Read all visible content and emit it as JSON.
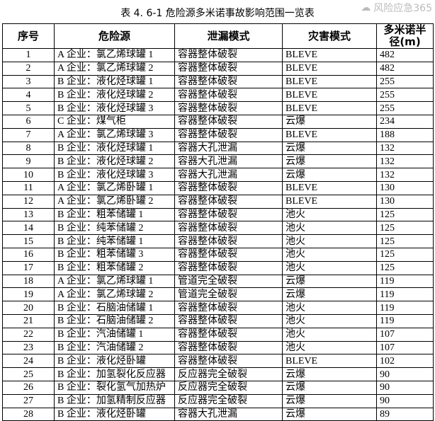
{
  "title": "表 4. 6-1  危险源多米诺事故影响范围一览表",
  "headers": [
    "序号",
    "危险源",
    "泄漏模式",
    "灾害模式",
    "多米诺半径(m)"
  ],
  "rows": [
    [
      "1",
      "A 企业：氯乙烯球罐 1",
      "容器整体破裂",
      "BLEVE",
      "482"
    ],
    [
      "2",
      "A 企业：氯乙烯球罐 2",
      "容器整体破裂",
      "BLEVE",
      "482"
    ],
    [
      "3",
      "B 企业：液化烃球罐 1",
      "容器整体破裂",
      "BLEVE",
      "255"
    ],
    [
      "4",
      "B 企业：液化烃球罐 2",
      "容器整体破裂",
      "BLEVE",
      "255"
    ],
    [
      "5",
      "B 企业：液化烃球罐 3",
      "容器整体破裂",
      "BLEVE",
      "255"
    ],
    [
      "6",
      "C 企业：煤气柜",
      "容器整体破裂",
      "云爆",
      "234"
    ],
    [
      "7",
      "A 企业：氯乙烯球罐 3",
      "容器整体破裂",
      "BLEVE",
      "188"
    ],
    [
      "8",
      "B 企业：液化烃球罐 1",
      "容器大孔泄漏",
      "云爆",
      "132"
    ],
    [
      "9",
      "B 企业：液化烃球罐 2",
      "容器大孔泄漏",
      "云爆",
      "132"
    ],
    [
      "10",
      "B 企业：液化烃球罐 3",
      "容器大孔泄漏",
      "云爆",
      "132"
    ],
    [
      "11",
      "A 企业：氯乙烯卧罐 1",
      "容器整体破裂",
      "BLEVE",
      "130"
    ],
    [
      "12",
      "A 企业：氯乙烯卧罐 2",
      "容器整体破裂",
      "BLEVE",
      "130"
    ],
    [
      "13",
      "B 企业：粗苯储罐 1",
      "容器整体破裂",
      "池火",
      "125"
    ],
    [
      "14",
      "B 企业：纯苯储罐 2",
      "容器整体破裂",
      "池火",
      "125"
    ],
    [
      "15",
      "B 企业：纯苯储罐 1",
      "容器整体破裂",
      "池火",
      "125"
    ],
    [
      "16",
      "B 企业：粗苯储罐 3",
      "容器整体破裂",
      "池火",
      "125"
    ],
    [
      "17",
      "B 企业：粗苯储罐 2",
      "容器整体破裂",
      "池火",
      "125"
    ],
    [
      "18",
      "A 企业：氯乙烯球罐 1",
      "管道完全破裂",
      "云爆",
      "119"
    ],
    [
      "19",
      "A 企业：氯乙烯球罐 2",
      "管道完全破裂",
      "云爆",
      "119"
    ],
    [
      "20",
      "B 企业：石脑油储罐 1",
      "容器整体破裂",
      "池火",
      "119"
    ],
    [
      "21",
      "B 企业：石脑油储罐 2",
      "容器整体破裂",
      "池火",
      "119"
    ],
    [
      "22",
      "B 企业：汽油储罐 1",
      "容器整体破裂",
      "池火",
      "107"
    ],
    [
      "23",
      "B 企业：汽油储罐 2",
      "容器整体破裂",
      "池火",
      "107"
    ],
    [
      "24",
      "B 企业：液化烃卧罐",
      "容器整体破裂",
      "BLEVE",
      "102"
    ],
    [
      "25",
      "B 企业：加氢裂化反应器",
      "反应器完全破裂",
      "云爆",
      "90"
    ],
    [
      "26",
      "B 企业：裂化氢气加热炉",
      "反应器完全破裂",
      "云爆",
      "90"
    ],
    [
      "27",
      "B 企业：加氢精制反应器",
      "反应器完全破裂",
      "云爆",
      "90"
    ],
    [
      "28",
      "B 企业：液化烃卧罐",
      "容器大孔泄漏",
      "云爆",
      "89"
    ]
  ],
  "watermark": "风险应急365"
}
